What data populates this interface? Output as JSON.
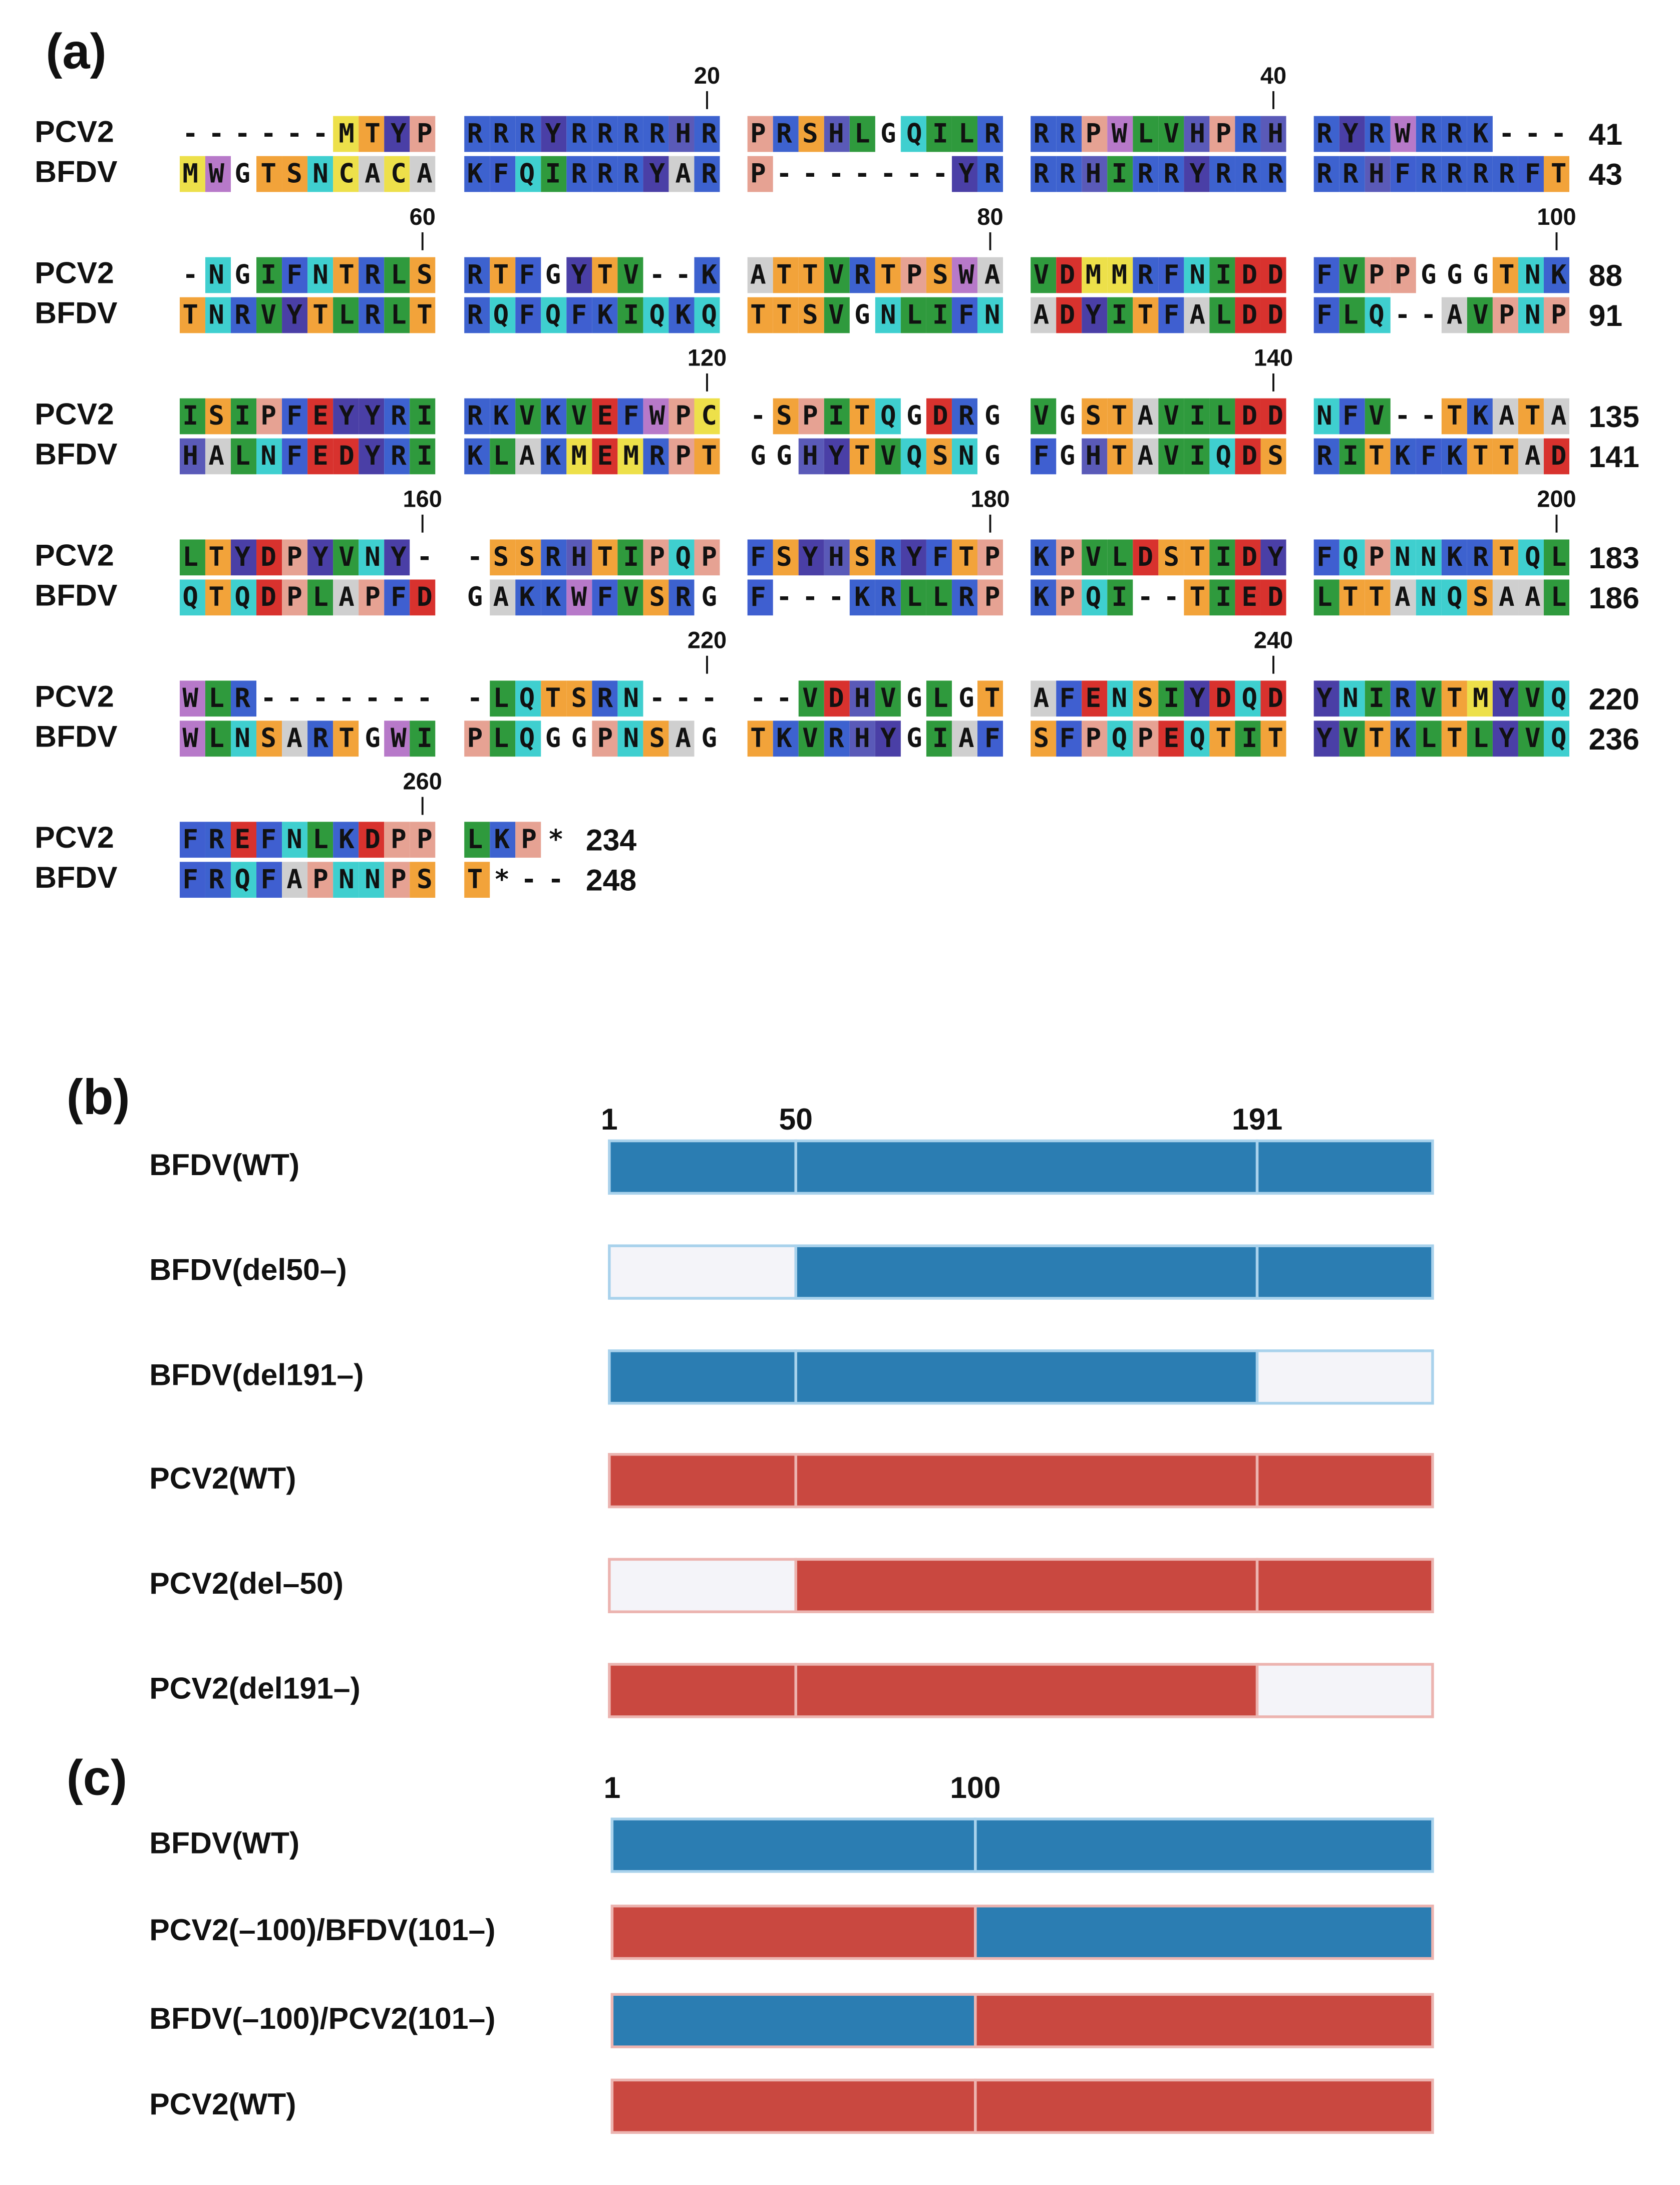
{
  "panel_a": {
    "label": "(a)",
    "residue_colors": {
      "R": "#3d62cf",
      "K": "#3d62cf",
      "H": "#5a5ab8",
      "F": "#3f5fd0",
      "Y": "#4a3fa6",
      "W": "#b779c9",
      "D": "#d8322e",
      "E": "#d8322e",
      "N": "#3fcfcf",
      "Q": "#3fcfcf",
      "S": "#f2a33a",
      "T": "#f2a33a",
      "P": "#e6a293",
      "A": "#cfcfcf",
      "C": "#ede04a",
      "M": "#ede04a",
      "I": "#2f9a3d",
      "L": "#2f9a3d",
      "V": "#2f9a3d"
    },
    "rows": [
      {
        "ruler": [
          20,
          40
        ],
        "seqs": [
          {
            "name": "PCV2",
            "blocks": [
              "------MTYP",
              "RRRYRRRRHR",
              "PRSHLGQILR",
              "RRPWLVHPRH",
              "RYRWRRK---"
            ],
            "end": 41
          },
          {
            "name": "BFDV",
            "blocks": [
              "MWGTSNCACA",
              "KFQIRRRYAR",
              "P-------YR",
              "RRHIRRYRRR",
              "RRHFRRRRFT"
            ],
            "end": 43
          }
        ]
      },
      {
        "ruler": [
          60,
          80,
          100
        ],
        "seqs": [
          {
            "name": "PCV2",
            "blocks": [
              "-NGIFNTRLS",
              "RTFGYTV--K",
              "ATTVRTPSWA",
              "VDMMRFNIDD",
              "FVPPGGGTNK"
            ],
            "end": 88
          },
          {
            "name": "BFDV",
            "blocks": [
              "TNRVYTLRLT",
              "RQFQFKIQKQ",
              "TTSVGNLIFN",
              "ADYITFALDD",
              "FLQ--AVPNP"
            ],
            "end": 91
          }
        ]
      },
      {
        "ruler": [
          120,
          140
        ],
        "seqs": [
          {
            "name": "PCV2",
            "blocks": [
              "ISIPFEYYRI",
              "RKVKVEFWPC",
              "-SPITQGDRG",
              "VGSTAVILDD",
              "NFV--TKATA"
            ],
            "end": 135
          },
          {
            "name": "BFDV",
            "blocks": [
              "HALNFEDYRI",
              "KLAKMEMRPT",
              "GGHYTVQSNG",
              "FGHTAVIQDS",
              "RITKFKTTAD"
            ],
            "end": 141
          }
        ]
      },
      {
        "ruler": [
          160,
          180,
          200
        ],
        "seqs": [
          {
            "name": "PCV2",
            "blocks": [
              "LTYDPYVNY-",
              "-SSRHTIPQP",
              "FSYHSRYFTP",
              "KPVLDSTIDY",
              "FQPNNKRTQL"
            ],
            "end": 183
          },
          {
            "name": "BFDV",
            "blocks": [
              "QTQDPLAPFD",
              "GAKKWFVSRG",
              "F---KRLLRP",
              "KPQI--TIED",
              "LTTANQSAAL"
            ],
            "end": 186
          }
        ]
      },
      {
        "ruler": [
          220,
          240
        ],
        "seqs": [
          {
            "name": "PCV2",
            "blocks": [
              "WLR-------",
              "-LQTSRN---",
              "--VDHVGLGT",
              "AFENSIYDQD",
              "YNIRVTMYVQ"
            ],
            "end": 220
          },
          {
            "name": "BFDV",
            "blocks": [
              "WLNSARTGWI",
              "PLQGGPNSAG",
              "TKVRHYGIAF",
              "SFPQPEQTIT",
              "YVTKLTLYVQ"
            ],
            "end": 236
          }
        ]
      },
      {
        "ruler": [
          260
        ],
        "seqs": [
          {
            "name": "PCV2",
            "blocks": [
              "FREFNLKDPP",
              "LKP*"
            ],
            "end": 234
          },
          {
            "name": "BFDV",
            "blocks": [
              "FRQFAPNNPS",
              "T*--"
            ],
            "end": 248
          }
        ]
      }
    ]
  },
  "panel_b": {
    "label": "(b)",
    "markers": [
      1,
      50,
      191
    ],
    "constructs": [
      {
        "name": "BFDV(WT)",
        "segments": [
          "#2b7db2",
          "#2b7db2",
          "#2b7db2"
        ]
      },
      {
        "name": "BFDV(del50–)",
        "segments": [
          "#f4f4f9",
          "#2b7db2",
          "#2b7db2"
        ]
      },
      {
        "name": "BFDV(del191–)",
        "segments": [
          "#2b7db2",
          "#2b7db2",
          "#f4f4f9"
        ]
      },
      {
        "name": "PCV2(WT)",
        "segments": [
          "#c94840",
          "#c94840",
          "#c94840"
        ]
      },
      {
        "name": "PCV2(del–50)",
        "segments": [
          "#f4f4f9",
          "#c94840",
          "#c94840"
        ]
      },
      {
        "name": "PCV2(del191–)",
        "segments": [
          "#c94840",
          "#c94840",
          "#f4f4f9"
        ]
      }
    ]
  },
  "panel_c": {
    "label": "(c)",
    "markers": [
      1,
      100
    ],
    "constructs": [
      {
        "name": "BFDV(WT)",
        "segments": [
          "#2b7db2",
          "#2b7db2"
        ]
      },
      {
        "name": "PCV2(–100)/BFDV(101–)",
        "segments": [
          "#c94840",
          "#2b7db2"
        ]
      },
      {
        "name": "BFDV(–100)/PCV2(101–)",
        "segments": [
          "#2b7db2",
          "#c94840"
        ]
      },
      {
        "name": "PCV2(WT)",
        "segments": [
          "#c94840",
          "#c94840"
        ]
      }
    ]
  }
}
